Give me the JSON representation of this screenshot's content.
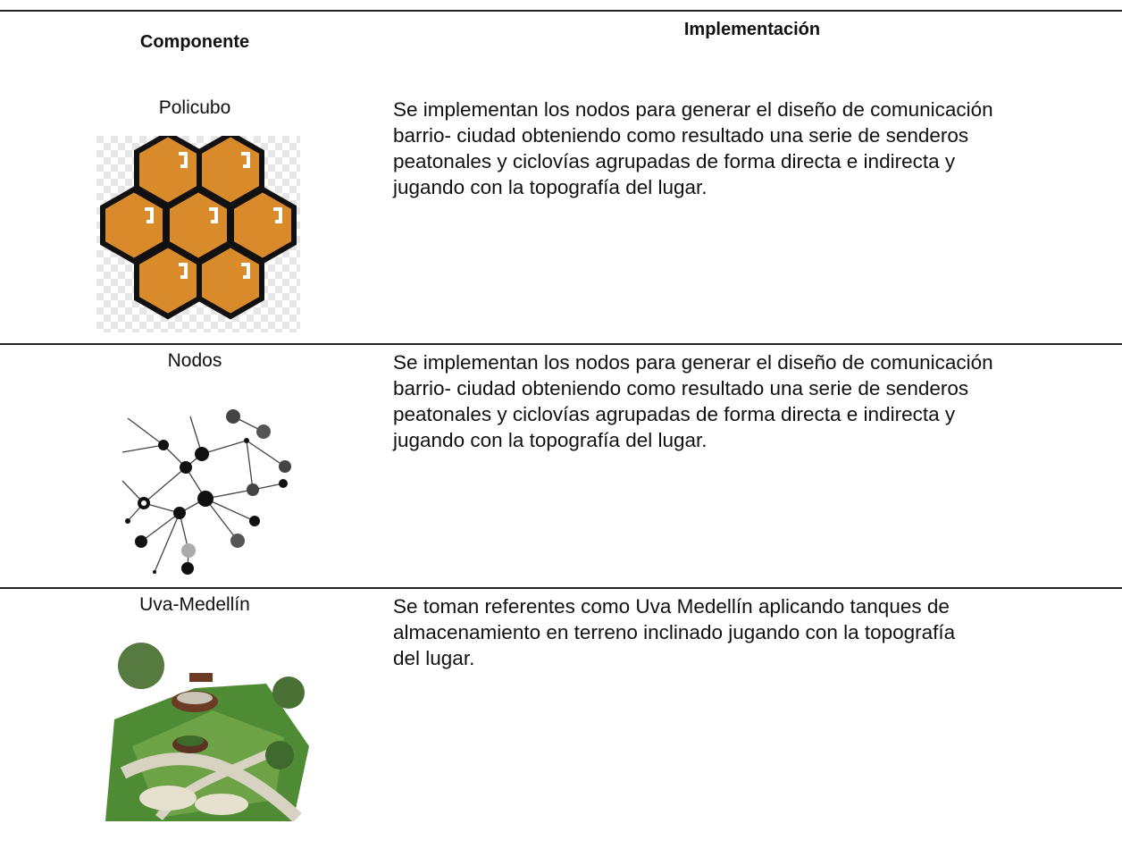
{
  "table": {
    "header": [
      "Componente",
      "Implementación"
    ],
    "rows": [
      {
        "component": "Policubo",
        "description_lines": [
          "Se implementan los nodos para generar el diseño de comunicación",
          "barrio- ciudad obteniendo como resultado una serie de senderos",
          "peatonales y ciclovías agrupadas de forma directa e indirecta y",
          "jugando con la topografía del lugar."
        ]
      },
      {
        "component": "Nodos",
        "description_lines": [
          "Se implementan los nodos para generar el diseño de comunicación",
          "barrio- ciudad obteniendo como resultado una serie de senderos",
          "peatonales y ciclovías agrupadas de forma directa e indirecta y",
          "jugando con la topografía del lugar."
        ]
      },
      {
        "component": "Uva-Medellín",
        "description_lines": [
          "Se toman referentes como Uva Medellín aplicando tanques de",
          "almacenamiento en terreno inclinado jugando con la topografía",
          "del lugar."
        ]
      }
    ]
  }
}
